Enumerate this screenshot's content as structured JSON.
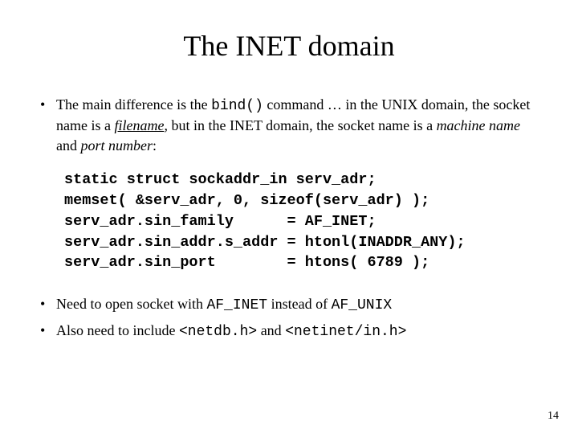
{
  "slide": {
    "title": "The INET domain",
    "background_color": "#ffffff",
    "text_color": "#000000",
    "title_fontsize": 36,
    "body_fontsize": 18,
    "code_fontsize": 18.5,
    "page_number_fontsize": 14,
    "font_family_body": "Times New Roman",
    "font_family_mono": "Courier New",
    "bullet1": {
      "pre": "The main difference is the ",
      "code1": "bind()",
      "mid1": " command … in the UNIX domain, the socket name is a ",
      "em1": "filename",
      "mid2": ", but in the INET domain, the socket name is a ",
      "em2": "machine name",
      "mid3": " and ",
      "em3": "port number",
      "post": ":"
    },
    "code": {
      "l1": "static struct sockaddr_in serv_adr;",
      "l2": "memset( &serv_adr, 0, sizeof(serv_adr) );",
      "l3": "serv_adr.sin_family      = AF_INET;",
      "l4": "serv_adr.sin_addr.s_addr = htonl(INADDR_ANY);",
      "l5": "serv_adr.sin_port        = htons( 6789 );"
    },
    "bullet2": {
      "pre": "Need to open socket with ",
      "code1": "AF_INET",
      "mid": " instead of ",
      "code2": "AF_UNIX"
    },
    "bullet3": {
      "pre": "Also need to include ",
      "code1": "<netdb.h>",
      "mid": " and ",
      "code2": "<netinet/in.h>"
    },
    "page_number": "14"
  }
}
